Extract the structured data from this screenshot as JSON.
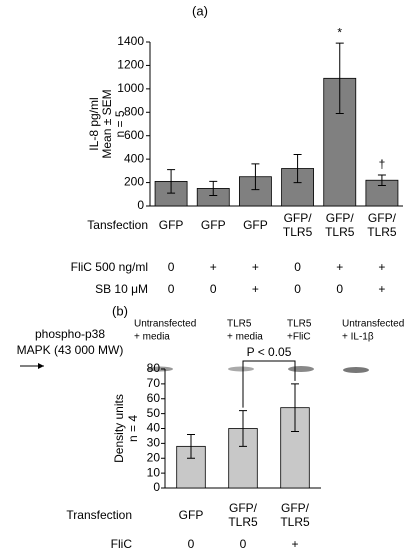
{
  "chart_data": [
    {
      "type": "bar",
      "panel_label": "(a)",
      "y_label": [
        "IL-8  pg/ml",
        "Mean ± SEM",
        "n = 5"
      ],
      "category_title": "Tansfection",
      "categories": [
        [
          "GFP"
        ],
        [
          "GFP"
        ],
        [
          "GFP"
        ],
        [
          "GFP/",
          "TLR5"
        ],
        [
          "GFP/",
          "TLR5"
        ],
        [
          "GFP/",
          "TLR5"
        ]
      ],
      "values": [
        210,
        150,
        250,
        320,
        1090,
        220
      ],
      "errors": [
        100,
        60,
        110,
        120,
        300,
        45
      ],
      "bar_symbols": [
        null,
        null,
        null,
        null,
        "*",
        "†"
      ],
      "rows": [
        {
          "label": "FliC 500 ng/ml",
          "cells": [
            "0",
            "+",
            "+",
            "0",
            "+",
            "+"
          ]
        },
        {
          "label": "SB 10 μM",
          "cells": [
            "0",
            "0",
            "+",
            "0",
            "0",
            "+"
          ]
        }
      ],
      "color": "#808080",
      "ylim": [
        0,
        1400
      ],
      "yticks": [
        0,
        200,
        400,
        600,
        800,
        1000,
        1200,
        1400
      ]
    },
    {
      "type": "bar",
      "panel_label": "(b)",
      "blot_target": [
        "phospho-p38",
        "MAPK (43 000 MW)"
      ],
      "blot_lanes": [
        [
          "Untransfected",
          "+ media"
        ],
        [
          "TLR5",
          "+ media"
        ],
        [
          "TLR5",
          "+FliC"
        ],
        [
          "Untransfected",
          "+ IL-1β"
        ]
      ],
      "y_label": [
        "Density units",
        "n = 4"
      ],
      "category_title": "Transfection",
      "categories": [
        [
          "GFP"
        ],
        [
          "GFP/",
          "TLR5"
        ],
        [
          "GFP/",
          "TLR5"
        ]
      ],
      "values": [
        28,
        40,
        54
      ],
      "errors": [
        8,
        12,
        16
      ],
      "bracket_text": "P < 0.05",
      "bracket_bars": [
        1,
        2
      ],
      "rows": [
        {
          "label": "FliC",
          "cells": [
            "0",
            "0",
            "+"
          ]
        }
      ],
      "color": "#c8c8c8",
      "ylim": [
        0,
        80
      ],
      "yticks": [
        0,
        10,
        20,
        30,
        40,
        50,
        60,
        70,
        80
      ]
    }
  ]
}
